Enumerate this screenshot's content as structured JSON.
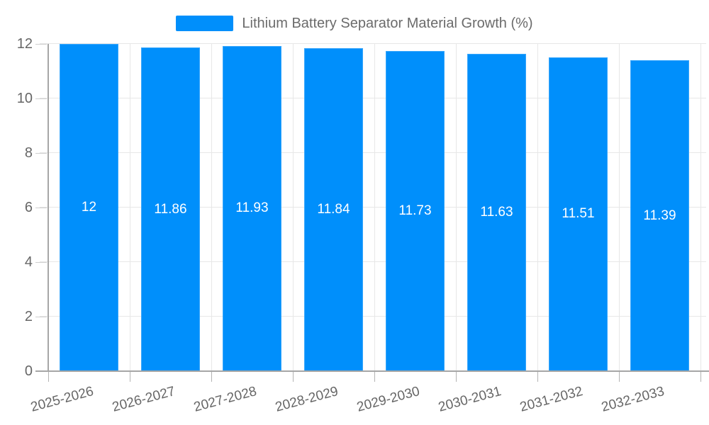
{
  "chart_data": {
    "type": "bar",
    "title": "Lithium Battery Separator Material Growth (%)",
    "categories": [
      "2025-2026",
      "2026-2027",
      "2027-2028",
      "2028-2029",
      "2029-2030",
      "2030-2031",
      "2031-2032",
      "2032-2033"
    ],
    "values": [
      12,
      11.86,
      11.93,
      11.84,
      11.73,
      11.63,
      11.51,
      11.39
    ],
    "value_labels": [
      "12",
      "11.86",
      "11.93",
      "11.84",
      "11.73",
      "11.63",
      "11.51",
      "11.39"
    ],
    "series": [
      {
        "name": "Lithium Battery Separator Material Growth (%)",
        "values": [
          12,
          11.86,
          11.93,
          11.84,
          11.73,
          11.63,
          11.51,
          11.39
        ]
      }
    ],
    "xlabel": "",
    "ylabel": "",
    "ylim": [
      0,
      12
    ],
    "yticks": [
      0,
      2,
      4,
      6,
      8,
      10,
      12
    ],
    "grid": true,
    "legend_position": "top",
    "colors": {
      "bar": "#008FFB",
      "hgrid": "#e7e7e7",
      "vgrid": "#e7e7e7",
      "axis_line": "#a6a6a6",
      "tick": "#b3b3b3",
      "axis_label": "#666666",
      "legend_text": "#6b6b6b",
      "data_label": "#ffffff",
      "background": "#ffffff"
    }
  }
}
